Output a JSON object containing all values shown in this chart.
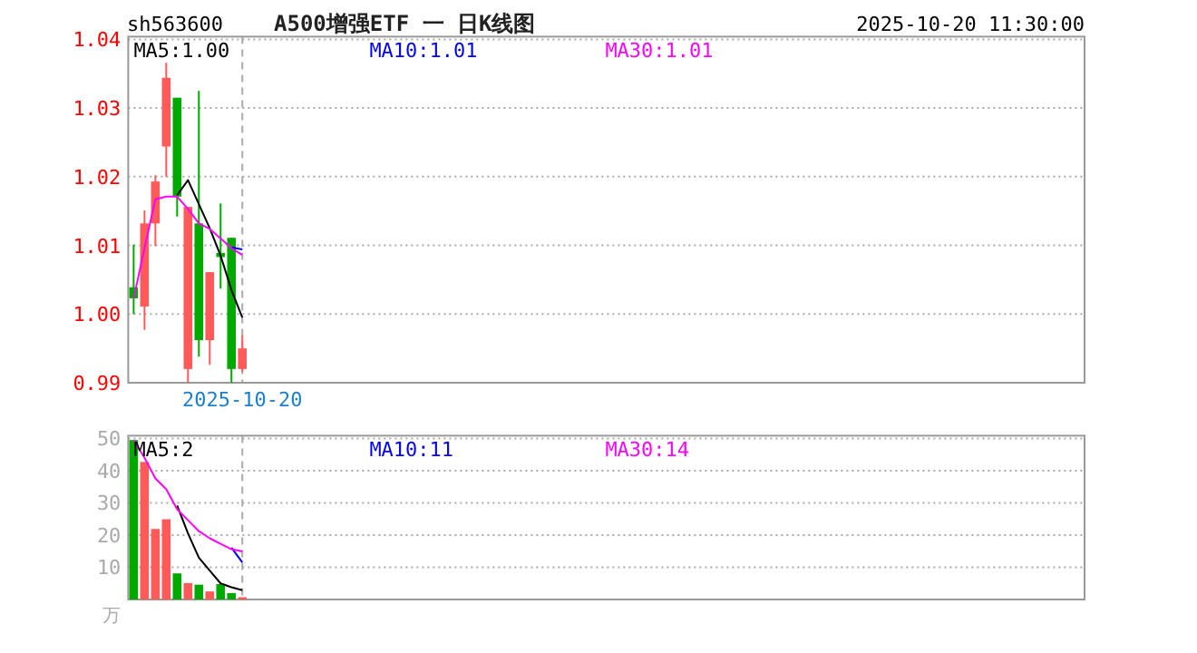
{
  "chart_data": [
    {
      "type": "candlestick",
      "title": "A500增强ETF 一 日K线图",
      "annotations": [
        "sh563600",
        "2025-10-20 11:30:00"
      ],
      "categories": [
        null,
        null,
        null,
        null,
        null,
        null,
        null,
        null,
        null,
        null,
        "2025-10-20",
        null,
        null,
        null,
        null,
        null,
        null,
        null,
        null,
        null,
        null,
        null,
        null,
        null,
        null,
        null,
        null,
        null,
        null,
        null,
        null,
        null,
        null,
        null,
        null,
        null,
        null,
        null,
        null,
        null,
        null,
        null,
        null,
        null,
        null,
        null,
        null,
        null,
        null,
        null,
        null,
        null,
        null,
        null,
        null,
        null,
        null,
        null,
        null,
        null,
        null,
        null,
        null,
        null,
        null,
        null,
        null,
        null,
        null,
        null,
        null,
        null,
        null,
        null,
        null,
        null,
        null,
        null,
        null,
        null,
        null,
        null,
        null,
        null,
        null,
        null,
        null,
        null
      ],
      "ohlc": [
        [
          1.0039,
          1.0101,
          1.0,
          1.0023
        ],
        [
          1.0011,
          1.0151,
          0.9977,
          1.0132
        ],
        [
          1.0132,
          1.0202,
          1.0099,
          1.0193
        ],
        [
          1.0244,
          1.0366,
          1.02,
          1.0344
        ],
        [
          1.0315,
          1.0315,
          1.0142,
          1.0171
        ],
        [
          0.992,
          1.0156,
          0.99,
          1.0156
        ],
        [
          1.0132,
          1.0325,
          0.9938,
          0.9962
        ],
        [
          0.9962,
          1.0061,
          0.9926,
          1.0061
        ],
        [
          1.0089,
          1.0161,
          1.0037,
          1.0083
        ],
        [
          1.0111,
          1.0111,
          0.99,
          0.992
        ],
        [
          0.992,
          0.9969,
          0.9916,
          0.995
        ],
        null,
        null,
        null,
        null,
        null,
        null,
        null,
        null,
        null,
        null,
        null,
        null,
        null,
        null,
        null,
        null,
        null,
        null,
        null,
        null,
        null,
        null,
        null,
        null,
        null,
        null,
        null,
        null,
        null,
        null,
        null,
        null,
        null,
        null,
        null,
        null,
        null,
        null,
        null,
        null,
        null,
        null,
        null,
        null,
        null,
        null,
        null,
        null,
        null,
        null,
        null,
        null,
        null,
        null,
        null,
        null,
        null,
        null,
        null,
        null,
        null,
        null,
        null,
        null,
        null,
        null,
        null,
        null,
        null,
        null,
        null,
        null,
        null,
        null,
        null,
        null,
        null
      ],
      "series": [
        {
          "type": "line",
          "name": "MA5:1.00",
          "color": "#000000",
          "values": [
            null,
            null,
            null,
            null,
            1.0173,
            1.0195,
            1.016,
            1.0125,
            1.0085,
            1.0035,
            0.9995,
            null,
            null,
            null,
            null,
            null,
            null,
            null,
            null,
            null,
            null,
            null,
            null,
            null,
            null,
            null,
            null,
            null,
            null,
            null,
            null,
            null,
            null,
            null,
            null,
            null,
            null,
            null,
            null,
            null,
            null,
            null,
            null,
            null,
            null,
            null,
            null,
            null,
            null,
            null,
            null,
            null,
            null,
            null,
            null,
            null,
            null,
            null,
            null,
            null,
            null,
            null,
            null,
            null,
            null,
            null,
            null,
            null,
            null,
            null,
            null,
            null,
            null,
            null,
            null,
            null,
            null,
            null,
            null,
            null,
            null,
            null,
            null,
            null,
            null,
            null,
            null,
            null
          ]
        },
        {
          "type": "line",
          "name": "MA10:1.01",
          "color": "#0000ff",
          "values": [
            null,
            null,
            null,
            null,
            null,
            null,
            null,
            null,
            null,
            1.0097,
            1.0094,
            null,
            null,
            null,
            null,
            null,
            null,
            null,
            null,
            null,
            null,
            null,
            null,
            null,
            null,
            null,
            null,
            null,
            null,
            null,
            null,
            null,
            null,
            null,
            null,
            null,
            null,
            null,
            null,
            null,
            null,
            null,
            null,
            null,
            null,
            null,
            null,
            null,
            null,
            null,
            null,
            null,
            null,
            null,
            null,
            null,
            null,
            null,
            null,
            null,
            null,
            null,
            null,
            null,
            null,
            null,
            null,
            null,
            null,
            null,
            null,
            null,
            null,
            null,
            null,
            null,
            null,
            null,
            null,
            null,
            null,
            null,
            null,
            null,
            null,
            null,
            null,
            null
          ]
        },
        {
          "type": "line",
          "name": "MA30:1.01",
          "color": "#ff00ff",
          "values": [
            1.0023,
            1.0096,
            1.0167,
            1.0171,
            1.0171,
            1.0153,
            1.0132,
            1.0124,
            1.011,
            1.0096,
            1.0086,
            null,
            null,
            null,
            null,
            null,
            null,
            null,
            null,
            null,
            null,
            null,
            null,
            null,
            null,
            null,
            null,
            null,
            null,
            null,
            null,
            null,
            null,
            null,
            null,
            null,
            null,
            null,
            null,
            null,
            null,
            null,
            null,
            null,
            null,
            null,
            null,
            null,
            null,
            null,
            null,
            null,
            null,
            null,
            null,
            null,
            null,
            null,
            null,
            null,
            null,
            null,
            null,
            null,
            null,
            null,
            null,
            null,
            null,
            null,
            null,
            null,
            null,
            null,
            null,
            null,
            null,
            null,
            null,
            null,
            null,
            null,
            null,
            null,
            null,
            null,
            null,
            null
          ]
        }
      ],
      "ylim": [
        0.99,
        1.04
      ],
      "yticks": [
        {
          "value": 0.99,
          "label": "0.99"
        },
        {
          "value": 1.0,
          "label": "1.00"
        },
        {
          "value": 1.01,
          "label": "1.01"
        },
        {
          "value": 1.02,
          "label": "1.02"
        },
        {
          "value": 1.03,
          "label": "1.03"
        },
        {
          "value": 1.04,
          "label": "1.04"
        }
      ],
      "grid": true,
      "legend": "top"
    },
    {
      "type": "bar",
      "ylabel": "万",
      "categories": [
        null,
        null,
        null,
        null,
        null,
        null,
        null,
        null,
        null,
        null,
        null,
        null,
        null,
        null,
        null,
        null,
        null,
        null,
        null,
        null,
        null,
        null,
        null,
        null,
        null,
        null,
        null,
        null,
        null,
        null,
        null,
        null,
        null,
        null,
        null,
        null,
        null,
        null,
        null,
        null,
        null,
        null,
        null,
        null,
        null,
        null,
        null,
        null,
        null,
        null,
        null,
        null,
        null,
        null,
        null,
        null,
        null,
        null,
        null,
        null,
        null,
        null,
        null,
        null,
        null,
        null,
        null,
        null,
        null,
        null,
        null,
        null,
        null,
        null,
        null,
        null,
        null,
        null,
        null,
        null,
        null,
        null,
        null,
        null,
        null,
        null,
        null,
        null
      ],
      "values": [
        49.5,
        42.7,
        21.9,
        24.9,
        8.1,
        5.1,
        4.6,
        2.5,
        4.8,
        2.0,
        0.7,
        null,
        null,
        null,
        null,
        null,
        null,
        null,
        null,
        null,
        null,
        null,
        null,
        null,
        null,
        null,
        null,
        null,
        null,
        null,
        null,
        null,
        null,
        null,
        null,
        null,
        null,
        null,
        null,
        null,
        null,
        null,
        null,
        null,
        null,
        null,
        null,
        null,
        null,
        null,
        null,
        null,
        null,
        null,
        null,
        null,
        null,
        null,
        null,
        null,
        null,
        null,
        null,
        null,
        null,
        null,
        null,
        null,
        null,
        null,
        null,
        null,
        null,
        null,
        null,
        null,
        null,
        null,
        null,
        null,
        null,
        null,
        null,
        null,
        null,
        null,
        null,
        null
      ],
      "colors": [
        "#00a800",
        "#ff5a5a",
        "#ff5a5a",
        "#ff5a5a",
        "#00a800",
        "#ff5a5a",
        "#00a800",
        "#ff5a5a",
        "#00a800",
        "#00a800",
        "#ff5a5a",
        null,
        null,
        null,
        null,
        null,
        null,
        null,
        null,
        null,
        null,
        null,
        null,
        null,
        null,
        null,
        null,
        null,
        null,
        null,
        null,
        null,
        null,
        null,
        null,
        null,
        null,
        null,
        null,
        null,
        null,
        null,
        null,
        null,
        null,
        null,
        null,
        null,
        null,
        null,
        null,
        null,
        null,
        null,
        null,
        null,
        null,
        null,
        null,
        null,
        null,
        null,
        null,
        null,
        null,
        null,
        null,
        null,
        null,
        null,
        null,
        null,
        null,
        null,
        null,
        null,
        null,
        null,
        null,
        null,
        null,
        null,
        null,
        null,
        null,
        null,
        null,
        null
      ],
      "series": [
        {
          "type": "line",
          "name": "MA5:2",
          "color": "#000000",
          "values": [
            null,
            null,
            null,
            null,
            29.2,
            20.5,
            13.0,
            9.0,
            5.0,
            3.8,
            2.9,
            null,
            null,
            null,
            null,
            null,
            null,
            null,
            null,
            null,
            null,
            null,
            null,
            null,
            null,
            null,
            null,
            null,
            null,
            null,
            null,
            null,
            null,
            null,
            null,
            null,
            null,
            null,
            null,
            null,
            null,
            null,
            null,
            null,
            null,
            null,
            null,
            null,
            null,
            null,
            null,
            null,
            null,
            null,
            null,
            null,
            null,
            null,
            null,
            null,
            null,
            null,
            null,
            null,
            null,
            null,
            null,
            null,
            null,
            null,
            null,
            null,
            null,
            null,
            null,
            null,
            null,
            null,
            null,
            null,
            null,
            null,
            null,
            null,
            null,
            null,
            null,
            null
          ]
        },
        {
          "type": "line",
          "name": "MA10:11",
          "color": "#0000ff",
          "values": [
            null,
            null,
            null,
            null,
            null,
            null,
            null,
            null,
            null,
            16.1,
            11.5,
            null,
            null,
            null,
            null,
            null,
            null,
            null,
            null,
            null,
            null,
            null,
            null,
            null,
            null,
            null,
            null,
            null,
            null,
            null,
            null,
            null,
            null,
            null,
            null,
            null,
            null,
            null,
            null,
            null,
            null,
            null,
            null,
            null,
            null,
            null,
            null,
            null,
            null,
            null,
            null,
            null,
            null,
            null,
            null,
            null,
            null,
            null,
            null,
            null,
            null,
            null,
            null,
            null,
            null,
            null,
            null,
            null,
            null,
            null,
            null,
            null,
            null,
            null,
            null,
            null,
            null,
            null,
            null,
            null,
            null,
            null,
            null,
            null,
            null,
            null,
            null,
            null
          ]
        },
        {
          "type": "line",
          "name": "MA30:14",
          "color": "#ff00ff",
          "values": [
            49.5,
            44.0,
            37.6,
            34.2,
            28.0,
            24.6,
            21.2,
            19.0,
            17.3,
            15.6,
            14.9,
            null,
            null,
            null,
            null,
            null,
            null,
            null,
            null,
            null,
            null,
            null,
            null,
            null,
            null,
            null,
            null,
            null,
            null,
            null,
            null,
            null,
            null,
            null,
            null,
            null,
            null,
            null,
            null,
            null,
            null,
            null,
            null,
            null,
            null,
            null,
            null,
            null,
            null,
            null,
            null,
            null,
            null,
            null,
            null,
            null,
            null,
            null,
            null,
            null,
            null,
            null,
            null,
            null,
            null,
            null,
            null,
            null,
            null,
            null,
            null,
            null,
            null,
            null,
            null,
            null,
            null,
            null,
            null,
            null,
            null,
            null,
            null,
            null,
            null,
            null,
            null,
            null
          ]
        }
      ],
      "ylim": [
        0,
        50
      ],
      "yticks": [
        10,
        20,
        30,
        40,
        50
      ],
      "grid": true,
      "legend": "top",
      "tick_labels": "y"
    }
  ]
}
